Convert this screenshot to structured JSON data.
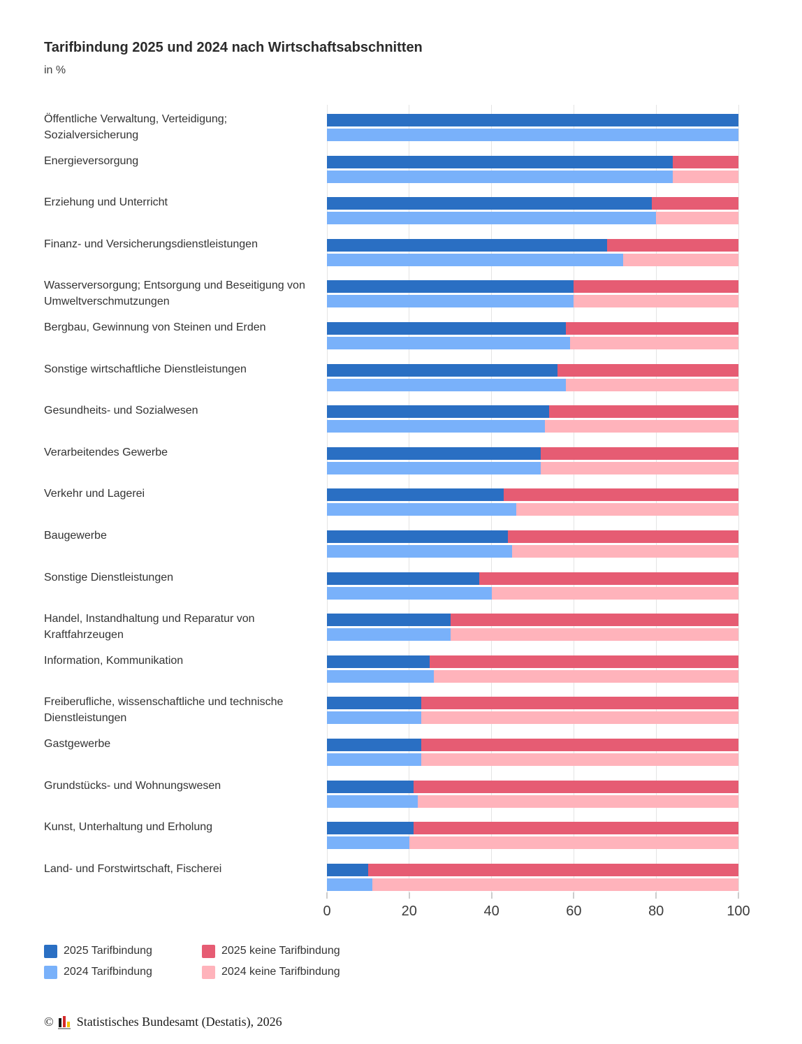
{
  "title": "Tarifbindung 2025 und 2024 nach Wirtschaftsabschnitten",
  "subtitle": "in %",
  "chart_data": {
    "type": "bar",
    "orientation": "horizontal-stacked",
    "stack_total": 100,
    "xlim": [
      0,
      100
    ],
    "x_ticks": [
      0,
      20,
      40,
      60,
      80,
      100
    ],
    "grid": "vertical",
    "legend_position": "bottom-left",
    "categories": [
      "Öffentliche Verwaltung, Verteidigung; Sozialversicherung",
      "Energieversorgung",
      "Erziehung und Unterricht",
      "Finanz- und Versicherungsdienstleistungen",
      "Wasserversorgung; Entsorgung und Beseitigung von Umweltverschmutzungen",
      "Bergbau, Gewinnung von Steinen und Erden",
      "Sonstige wirtschaftliche Dienstleistungen",
      "Gesundheits- und Sozialwesen",
      "Verarbeitendes Gewerbe",
      "Verkehr und Lagerei",
      "Baugewerbe",
      "Sonstige Dienstleistungen",
      "Handel, Instandhaltung und Reparatur von Kraftfahrzeugen",
      "Information, Kommunikation",
      "Freiberufliche, wissenschaftliche und technische Dienstleistungen",
      "Gastgewerbe",
      "Grundstücks- und Wohnungswesen",
      "Kunst, Unterhaltung und Erholung",
      "Land- und Forstwirtschaft, Fischerei"
    ],
    "series": [
      {
        "name": "2025 Tarifbindung",
        "color": "#2a6fc3",
        "values": [
          100,
          84,
          79,
          68,
          60,
          58,
          56,
          54,
          52,
          43,
          44,
          37,
          30,
          25,
          23,
          23,
          21,
          21,
          10
        ]
      },
      {
        "name": "2024 Tarifbindung",
        "color": "#79b1fa",
        "values": [
          100,
          84,
          80,
          72,
          60,
          59,
          58,
          53,
          52,
          46,
          45,
          40,
          30,
          26,
          23,
          23,
          22,
          20,
          11
        ]
      },
      {
        "name": "2025 keine Tarifbindung",
        "color": "#e65c73",
        "values": [
          0,
          16,
          21,
          32,
          40,
          42,
          44,
          46,
          48,
          57,
          56,
          63,
          70,
          75,
          77,
          77,
          79,
          79,
          90
        ]
      },
      {
        "name": "2024 keine Tarifbindung",
        "color": "#ffb3bb",
        "values": [
          0,
          16,
          20,
          28,
          40,
          41,
          42,
          47,
          48,
          54,
          55,
          60,
          70,
          74,
          77,
          77,
          78,
          80,
          89
        ]
      }
    ]
  },
  "legend": {
    "items": [
      {
        "label": "2025 Tarifbindung",
        "color": "#2a6fc3"
      },
      {
        "label": "2024 Tarifbindung",
        "color": "#79b1fa"
      },
      {
        "label": "2025 keine Tarifbindung",
        "color": "#e65c73"
      },
      {
        "label": "2024 keine Tarifbindung",
        "color": "#ffb3bb"
      }
    ]
  },
  "footer": {
    "copyright_symbol": "©",
    "source": "Statistisches Bundesamt (Destatis), 2026"
  }
}
